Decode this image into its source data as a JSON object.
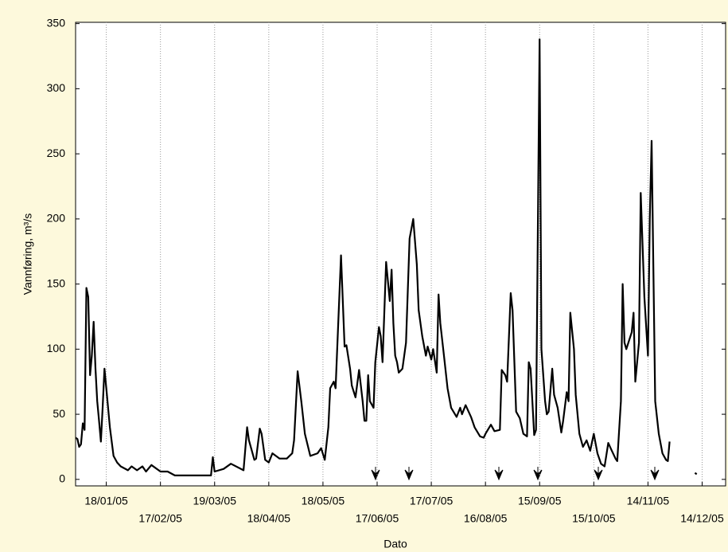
{
  "chart_data": {
    "type": "line",
    "x_label": "Dato",
    "y_label": "Vannføring, m³/s",
    "x": [
      1,
      2,
      3,
      4,
      5,
      6,
      7,
      8,
      9,
      10,
      11,
      12,
      13,
      14,
      15,
      16,
      17,
      18,
      20,
      22,
      24,
      26,
      30,
      32,
      35,
      38,
      40,
      43,
      48,
      52,
      56,
      65,
      76,
      77,
      78,
      83,
      87,
      94,
      96,
      97,
      100,
      101,
      103,
      104,
      106,
      108,
      110,
      114,
      118,
      121,
      122,
      124,
      126,
      128,
      131,
      135,
      137,
      139,
      141,
      142,
      144,
      145,
      148,
      150,
      151,
      153,
      154,
      156,
      158,
      160,
      161,
      162,
      163,
      164,
      166,
      167,
      169,
      170,
      171,
      173,
      175,
      176,
      177,
      178,
      179,
      180,
      182,
      184,
      186,
      188,
      190,
      191,
      193,
      195,
      196,
      198,
      199,
      201,
      202,
      203,
      205,
      207,
      209,
      212,
      214,
      215,
      217,
      220,
      222,
      225,
      227,
      228,
      231,
      233,
      236,
      237,
      239,
      240,
      242,
      243,
      245,
      247,
      249,
      251,
      252,
      253,
      255,
      256,
      258,
      259,
      261,
      262,
      263,
      265,
      266,
      268,
      270,
      271,
      273,
      274,
      275,
      277,
      278,
      280,
      282,
      284,
      286,
      288,
      290,
      292,
      294,
      296,
      298,
      300,
      301,
      303,
      304,
      305,
      306,
      309,
      310,
      311,
      313,
      314,
      316,
      318,
      319,
      320,
      322,
      324,
      326,
      328,
      329,
      330,
      337,
      344,
      345
    ],
    "series": [
      {
        "name": "Vannføring",
        "color": "#000000",
        "values": [
          32,
          31,
          25,
          27,
          43,
          38,
          147,
          140,
          80,
          95,
          121,
          85,
          60,
          45,
          29,
          55,
          85,
          70,
          40,
          18,
          13,
          10,
          7,
          10,
          7,
          10,
          6,
          11,
          6,
          6,
          3,
          3,
          3,
          17,
          6,
          8,
          12,
          7,
          40,
          30,
          15,
          16,
          39,
          35,
          15,
          13,
          20,
          16,
          16,
          20,
          30,
          83,
          60,
          35,
          18,
          20,
          24,
          15,
          40,
          70,
          75,
          70,
          172,
          102,
          103,
          85,
          72,
          63,
          84,
          60,
          45,
          45,
          80,
          60,
          55,
          90,
          117,
          110,
          90,
          167,
          137,
          161,
          120,
          95,
          90,
          82,
          85,
          105,
          185,
          200,
          165,
          130,
          110,
          95,
          102,
          92,
          100,
          82,
          142,
          120,
          95,
          70,
          55,
          48,
          55,
          50,
          57,
          48,
          40,
          33,
          32,
          35,
          42,
          37,
          38,
          84,
          80,
          75,
          143,
          130,
          52,
          47,
          35,
          33,
          90,
          85,
          34,
          38,
          338,
          100,
          60,
          50,
          52,
          85,
          65,
          55,
          36,
          45,
          67,
          60,
          128,
          100,
          65,
          35,
          25,
          30,
          22,
          35,
          20,
          12,
          10,
          28,
          22,
          16,
          14,
          60,
          150,
          105,
          100,
          113,
          128,
          75,
          105,
          220,
          140,
          95,
          200,
          260,
          60,
          35,
          20,
          15,
          14,
          29,
          null,
          5,
          4
        ]
      }
    ],
    "xlim": [
      1,
      361
    ],
    "xticks": [
      {
        "value": 18,
        "label": "18/01/05"
      },
      {
        "value": 48,
        "label": "17/02/05"
      },
      {
        "value": 78,
        "label": "19/03/05"
      },
      {
        "value": 108,
        "label": "18/04/05"
      },
      {
        "value": 138,
        "label": "18/05/05"
      },
      {
        "value": 168,
        "label": "17/06/05"
      },
      {
        "value": 198,
        "label": "17/07/05"
      },
      {
        "value": 228,
        "label": "16/08/05"
      },
      {
        "value": 258,
        "label": "15/09/05"
      },
      {
        "value": 288,
        "label": "15/10/05"
      },
      {
        "value": 318,
        "label": "14/11/05"
      },
      {
        "value": 348,
        "label": "14/12/05"
      }
    ],
    "ylim": [
      -5,
      351
    ],
    "yticks": [
      0,
      50,
      100,
      150,
      200,
      250,
      300,
      350
    ],
    "grid": true
  }
}
